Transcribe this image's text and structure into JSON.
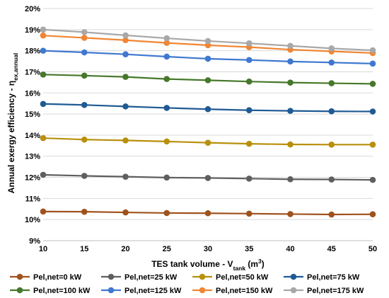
{
  "chart_data": {
    "type": "line",
    "title": "",
    "xlabel": {
      "main": "TES tank volume - V",
      "sub": "tank",
      "unit_open": " (m",
      "sup": "3",
      "unit_close": ")"
    },
    "ylabel": {
      "main": "Annual exergy efficiency - η",
      "sub": "ex,annual"
    },
    "x": [
      10,
      15,
      20,
      25,
      30,
      35,
      40,
      45,
      50
    ],
    "x_ticks": [
      "10",
      "15",
      "20",
      "25",
      "30",
      "35",
      "40",
      "45",
      "50"
    ],
    "xlim": [
      10,
      50
    ],
    "ylim": [
      9,
      20
    ],
    "y_ticks": [
      "9%",
      "10%",
      "11%",
      "12%",
      "13%",
      "14%",
      "15%",
      "16%",
      "17%",
      "18%",
      "19%",
      "20%"
    ],
    "grid": true,
    "legend_position": "bottom",
    "series": [
      {
        "name": "Pel,net=0 kW",
        "color": "#a0521d",
        "values": [
          10.38,
          10.37,
          10.34,
          10.31,
          10.3,
          10.28,
          10.26,
          10.24,
          10.25
        ]
      },
      {
        "name": "Pel,net=25 kW",
        "color": "#5f5f5f",
        "values": [
          12.12,
          12.07,
          12.03,
          11.99,
          11.97,
          11.94,
          11.91,
          11.9,
          11.88
        ]
      },
      {
        "name": "Pel,net=50 kW",
        "color": "#b8900c",
        "values": [
          13.86,
          13.79,
          13.75,
          13.7,
          13.64,
          13.59,
          13.56,
          13.55,
          13.55
        ]
      },
      {
        "name": "Pel,net=75 kW",
        "color": "#1f5a94",
        "values": [
          15.48,
          15.43,
          15.36,
          15.29,
          15.23,
          15.18,
          15.15,
          15.13,
          15.12
        ]
      },
      {
        "name": "Pel,net=100 kW",
        "color": "#46782b",
        "values": [
          16.87,
          16.82,
          16.76,
          16.66,
          16.6,
          16.54,
          16.49,
          16.46,
          16.43
        ]
      },
      {
        "name": "Pel,net=125 kW",
        "color": "#3f78d0",
        "values": [
          18.0,
          17.92,
          17.83,
          17.72,
          17.62,
          17.56,
          17.49,
          17.44,
          17.39
        ]
      },
      {
        "name": "Pel,net=150 kW",
        "color": "#f08634",
        "values": [
          18.72,
          18.61,
          18.5,
          18.37,
          18.26,
          18.17,
          18.05,
          17.97,
          17.89
        ]
      },
      {
        "name": "Pel,net=175 kW",
        "color": "#a8a8a8",
        "values": [
          19.0,
          18.88,
          18.73,
          18.59,
          18.46,
          18.35,
          18.23,
          18.11,
          18.02
        ]
      }
    ]
  }
}
